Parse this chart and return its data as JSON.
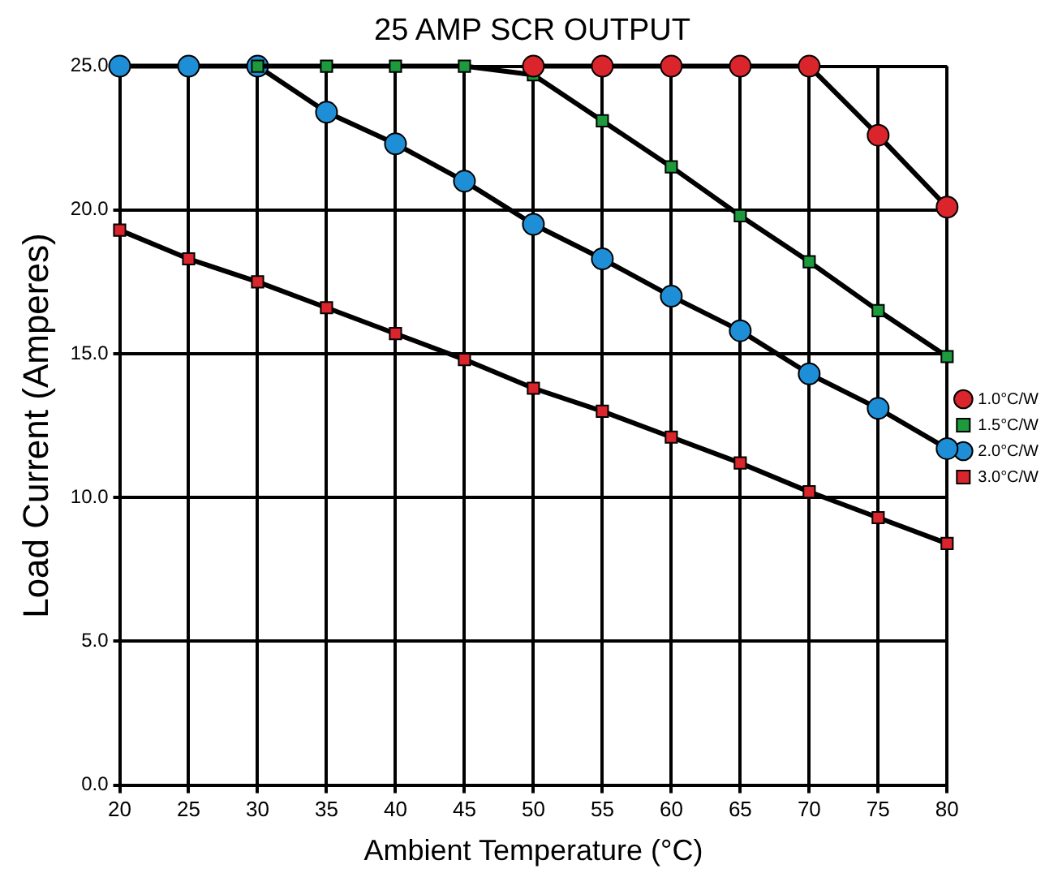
{
  "chart_data": {
    "type": "line",
    "title": "25 AMP SCR OUTPUT",
    "xlabel": "Ambient Temperature (°C)",
    "ylabel": "Load Current (Amperes)",
    "x": [
      20,
      25,
      30,
      35,
      40,
      45,
      50,
      55,
      60,
      65,
      70,
      75,
      80
    ],
    "series": [
      {
        "name": "1.0°C/W",
        "color": "#d9252b",
        "marker": "circle",
        "values": [
          null,
          null,
          null,
          null,
          null,
          null,
          25,
          25,
          25,
          25,
          25,
          22.6,
          20.1
        ]
      },
      {
        "name": "1.5°C/W",
        "color": "#1c9a3c",
        "marker": "square",
        "values": [
          null,
          null,
          25,
          25,
          25,
          25,
          24.7,
          23.1,
          21.5,
          19.8,
          18.2,
          16.5,
          14.9
        ]
      },
      {
        "name": "2.0°C/W",
        "color": "#1e8fd6",
        "marker": "circle",
        "values": [
          25,
          25,
          25,
          23.4,
          22.3,
          21.0,
          19.5,
          18.3,
          17.0,
          15.8,
          14.3,
          13.1,
          11.7
        ]
      },
      {
        "name": "3.0°C/W",
        "color": "#d9252b",
        "marker": "square",
        "values": [
          19.3,
          18.3,
          17.5,
          16.6,
          15.7,
          14.8,
          13.8,
          13.0,
          12.1,
          11.2,
          10.2,
          9.3,
          8.4
        ]
      }
    ],
    "xlim": [
      20,
      80
    ],
    "xticks": [
      20,
      25,
      30,
      35,
      40,
      45,
      50,
      55,
      60,
      65,
      70,
      75,
      80
    ],
    "ylim": [
      0,
      25
    ],
    "yticks": [
      {
        "value": 0,
        "label": "0.0"
      },
      {
        "value": 5,
        "label": "5.0"
      },
      {
        "value": 10,
        "label": "10.0"
      },
      {
        "value": 15,
        "label": "15.0"
      },
      {
        "value": 20,
        "label": "20.0"
      },
      {
        "value": 25,
        "label": "25.0"
      }
    ],
    "grid": true,
    "legend": "right",
    "line_style": "solid"
  }
}
